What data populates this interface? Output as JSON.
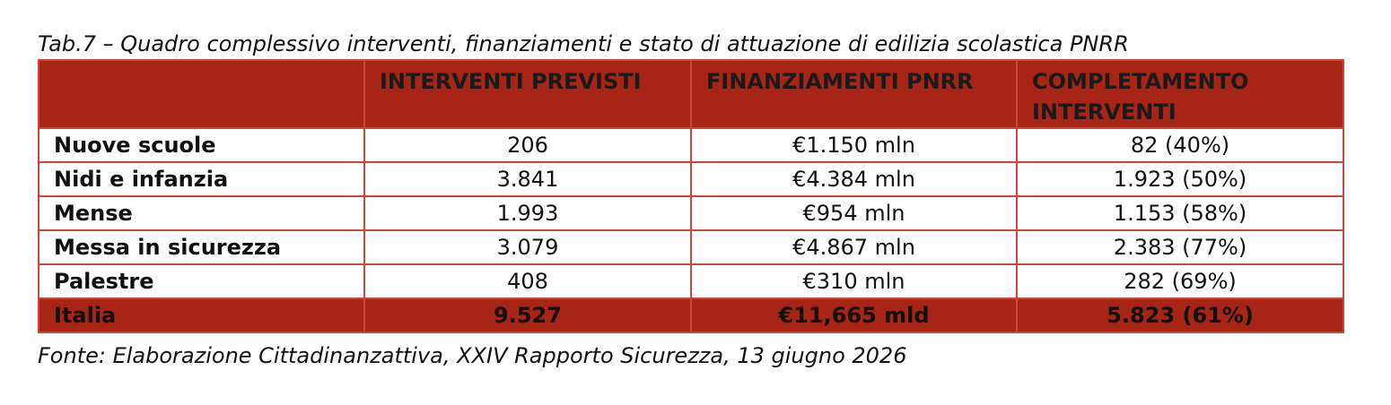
{
  "caption": "Tab.7 – Quadro complessivo interventi, finanziamenti e stato di attuazione di edilizia scolastica PNRR",
  "table": {
    "headers": [
      "",
      "INTERVENTI PREVISTI",
      "FINANZIAMENTI PNRR",
      "COMPLETAMENTO INTERVENTI"
    ],
    "rows": [
      {
        "label": "Nuove scuole",
        "interventi": "206",
        "finanziamenti": "€1.150 mln",
        "completamento": "82 (40%)"
      },
      {
        "label": "Nidi e infanzia",
        "interventi": "3.841",
        "finanziamenti": "€4.384 mln",
        "completamento": "1.923 (50%)"
      },
      {
        "label": "Mense",
        "interventi": "1.993",
        "finanziamenti": "€954 mln",
        "completamento": "1.153 (58%)"
      },
      {
        "label": "Messa in sicurezza",
        "interventi": "3.079",
        "finanziamenti": "€4.867 mln",
        "completamento": "2.383 (77%)"
      },
      {
        "label": "Palestre",
        "interventi": "408",
        "finanziamenti": "€310 mln",
        "completamento": "282 (69%)"
      }
    ],
    "total": {
      "label": "Italia",
      "interventi": "9.527",
      "finanziamenti": "€11,665 mld",
      "completamento": "5.823 (61%)"
    }
  },
  "source": "Fonte: Elaborazione Cittadinanzattiva, XXIV Rapporto Sicurezza, 13 giugno 2026",
  "colors": {
    "header_bg": "#a62516",
    "border": "#c9483a"
  }
}
